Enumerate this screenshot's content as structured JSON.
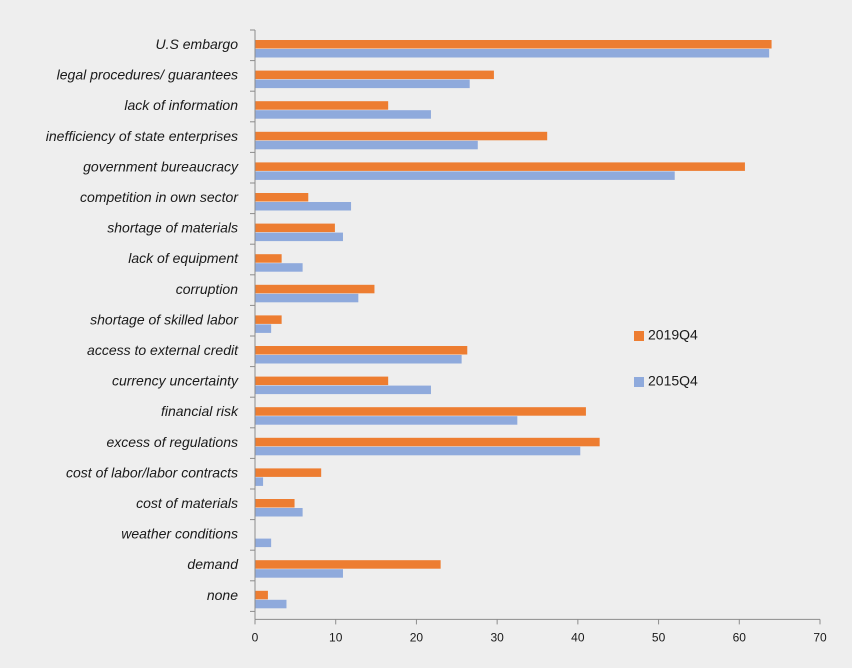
{
  "chart_data": {
    "type": "bar",
    "orientation": "horizontal",
    "title": "",
    "xlabel": "",
    "ylabel": "",
    "xlim": [
      0,
      70
    ],
    "xticks": [
      0,
      10,
      20,
      30,
      40,
      50,
      60,
      70
    ],
    "grid": false,
    "legend_position": "right",
    "categories": [
      "U.S embargo",
      "legal procedures/ guarantees",
      "lack of information",
      "inefficiency of state enterprises",
      "government bureaucracy",
      "competition in own sector",
      "shortage of materials",
      "lack of equipment",
      "corruption",
      "shortage of skilled labor",
      "access to external credit",
      "currency uncertainty",
      "financial risk",
      "excess of regulations",
      "cost of labor/labor contracts",
      "cost of materials",
      "weather conditions",
      "demand",
      "none"
    ],
    "series": [
      {
        "name": "2019Q4",
        "color": "#ed7d31",
        "values": [
          64,
          29.6,
          16.5,
          36.2,
          60.7,
          6.6,
          9.9,
          3.3,
          14.8,
          3.3,
          26.3,
          16.5,
          41.0,
          42.7,
          8.2,
          4.9,
          0,
          23.0,
          1.6
        ]
      },
      {
        "name": "2015Q4",
        "color": "#8faadc",
        "values": [
          63.7,
          26.6,
          21.8,
          27.6,
          52.0,
          11.9,
          10.9,
          5.9,
          12.8,
          2.0,
          25.6,
          21.8,
          32.5,
          40.3,
          1.0,
          5.9,
          2.0,
          10.9,
          3.9
        ]
      }
    ]
  }
}
